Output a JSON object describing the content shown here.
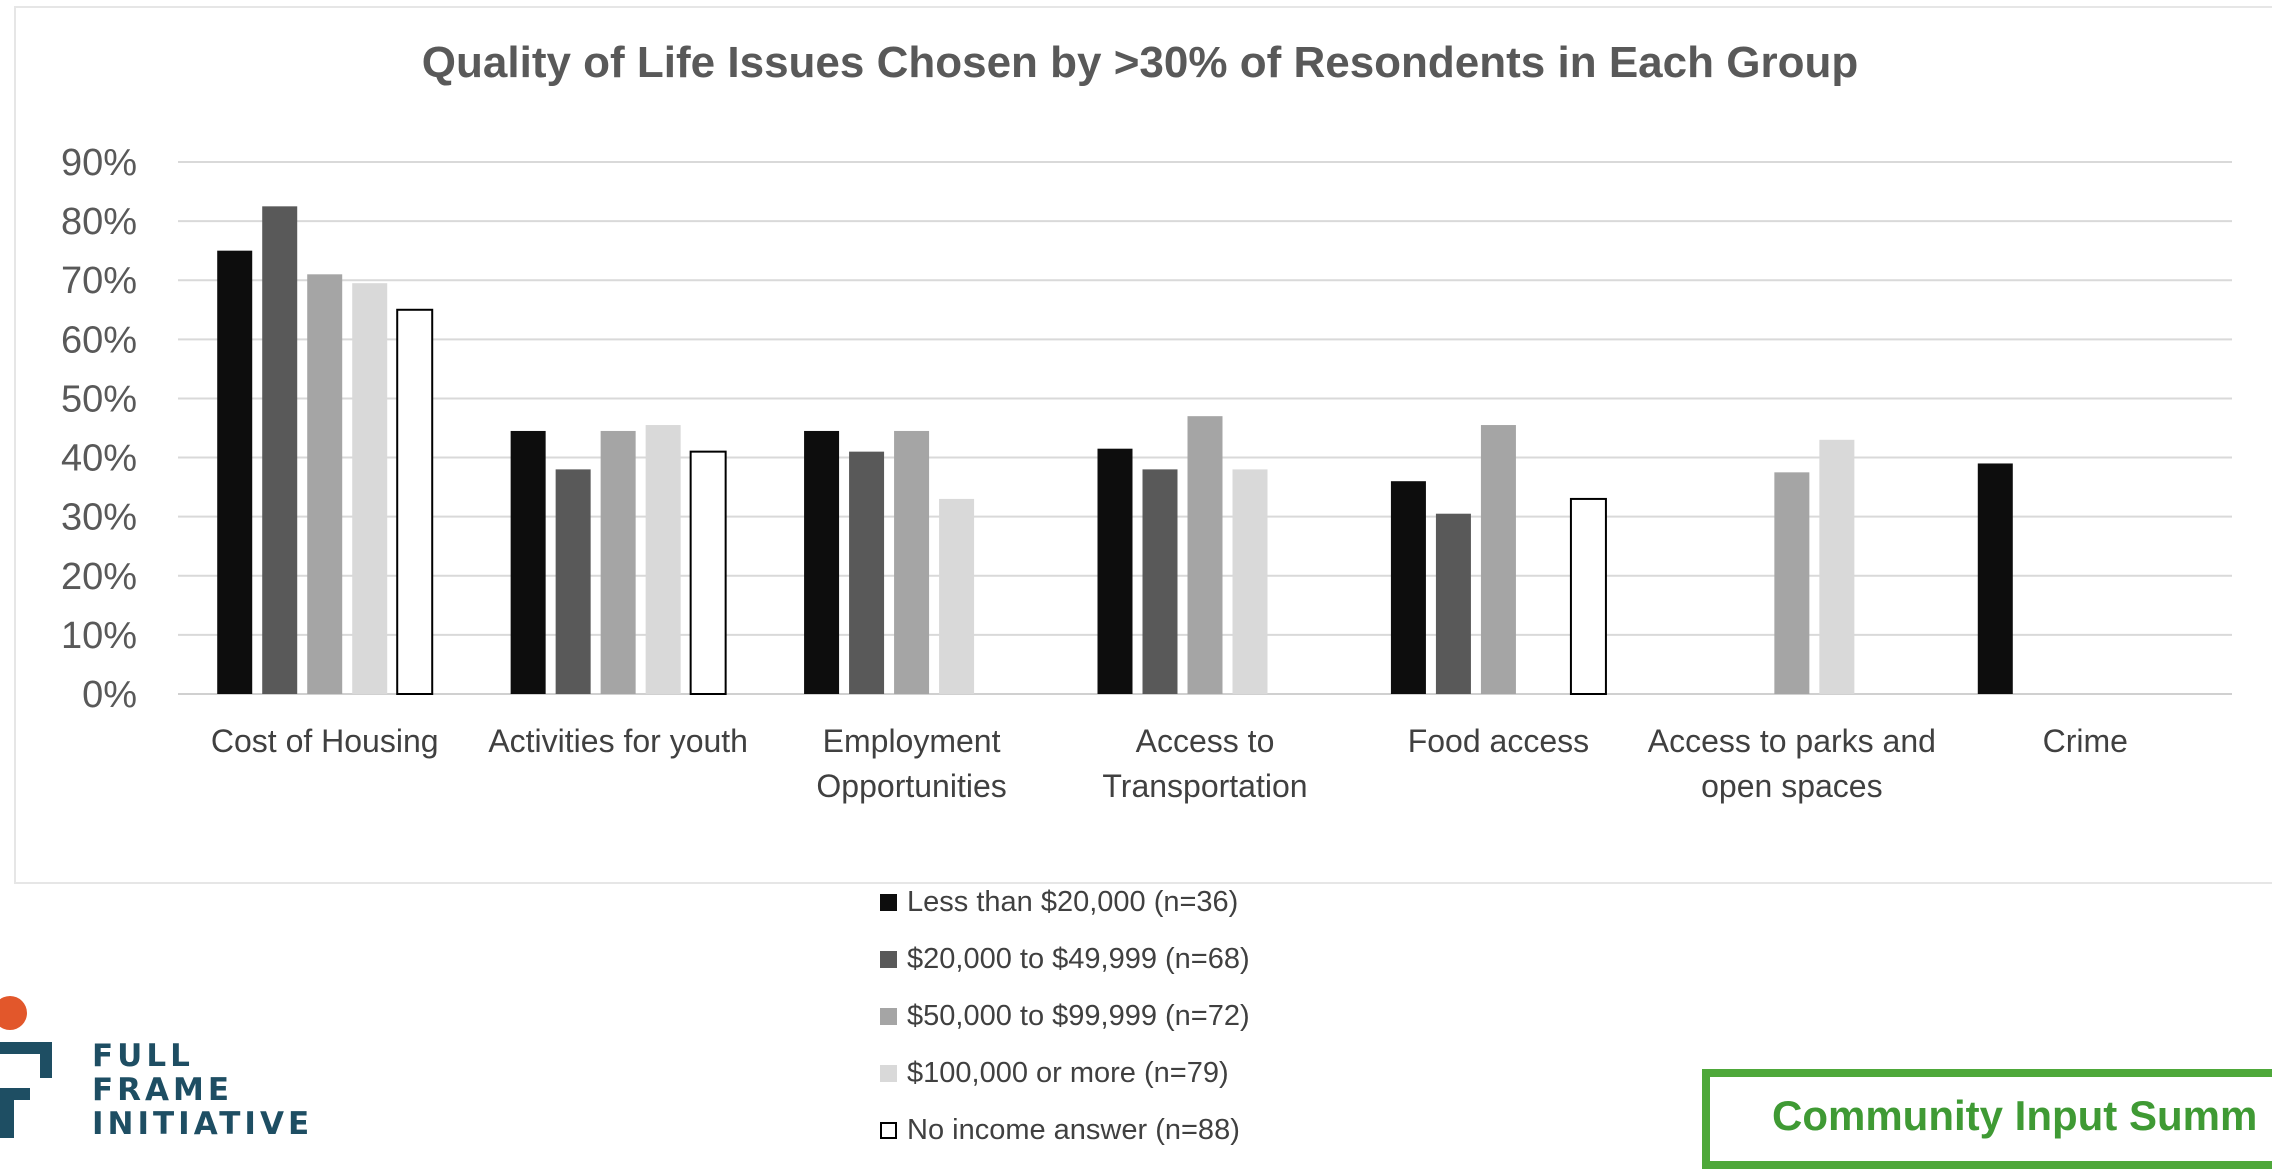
{
  "chart_data": {
    "type": "bar",
    "title": "Quality of Life Issues Chosen by >30% of Resondents in Each Group",
    "xlabel": "",
    "ylabel": "",
    "ylim": [
      0,
      0.9
    ],
    "yticks": [
      "0%",
      "10%",
      "20%",
      "30%",
      "40%",
      "50%",
      "60%",
      "70%",
      "80%",
      "90%"
    ],
    "grid": true,
    "legend_position": "bottom",
    "categories": [
      [
        "Cost of Housing"
      ],
      [
        "Activities for youth"
      ],
      [
        "Employment",
        "Opportunities"
      ],
      [
        "Access to",
        "Transportation"
      ],
      [
        "Food access"
      ],
      [
        "Access to parks and",
        "open spaces"
      ],
      [
        "Crime"
      ]
    ],
    "series": [
      {
        "name": "Less than $20,000 (n=36)",
        "color": "#0d0d0d",
        "values": [
          0.75,
          0.445,
          0.445,
          0.415,
          0.36,
          null,
          0.39
        ]
      },
      {
        "name": "$20,000 to $49,999 (n=68)",
        "color": "#595959",
        "values": [
          0.825,
          0.38,
          0.41,
          0.38,
          0.305,
          null,
          null
        ]
      },
      {
        "name": "$50,000 to $99,999 (n=72)",
        "color": "#a5a5a5",
        "values": [
          0.71,
          0.445,
          0.445,
          0.47,
          0.455,
          0.375,
          null
        ]
      },
      {
        "name": "$100,000 or more (n=79)",
        "color": "#d9d9d9",
        "values": [
          0.695,
          0.455,
          0.33,
          0.38,
          null,
          0.43,
          null
        ]
      },
      {
        "name": "No income answer (n=88)",
        "color": "#ffffff",
        "outline": "#000000",
        "values": [
          0.65,
          0.41,
          null,
          null,
          0.33,
          null,
          null
        ]
      }
    ]
  },
  "logo": {
    "lines": [
      "FULL",
      "FRAME",
      "INITIATIVE"
    ],
    "accent": "#e2572b",
    "brand": "#1e4e63"
  },
  "footer": {
    "label": "Community Input Summ",
    "color": "#4ea83a"
  }
}
